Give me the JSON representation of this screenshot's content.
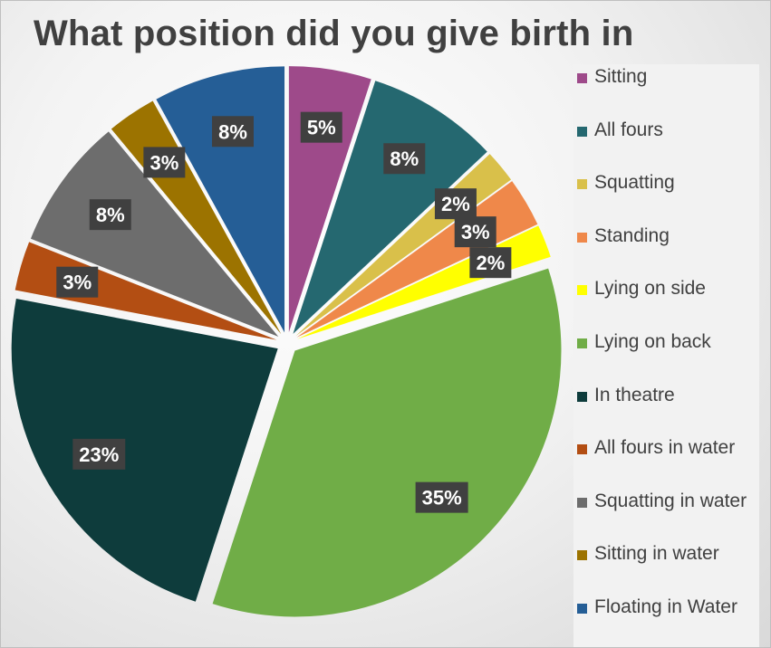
{
  "chart_data": {
    "type": "pie",
    "title": "What position did you give birth in",
    "categories": [
      "Sitting",
      "All fours",
      "Squatting",
      "Standing",
      "Lying on side",
      "Lying on back",
      "In theatre",
      "All fours in water",
      "Squatting in water",
      "Sitting in water",
      "Floating in Water"
    ],
    "values": [
      5,
      8,
      2,
      3,
      2,
      35,
      23,
      3,
      8,
      3,
      8
    ],
    "data_labels": [
      "5%",
      "8%",
      "2%",
      "3%",
      "2%",
      "35%",
      "23%",
      "3%",
      "8%",
      "3%",
      "8%"
    ],
    "colors": [
      "#9E4A8A",
      "#256870",
      "#D9C04A",
      "#EF884A",
      "#FFFF00",
      "#70AD47",
      "#0E3C3C",
      "#B34E13",
      "#6D6D6D",
      "#9C7300",
      "#255E96"
    ],
    "legend_position": "right",
    "exploded": true
  }
}
